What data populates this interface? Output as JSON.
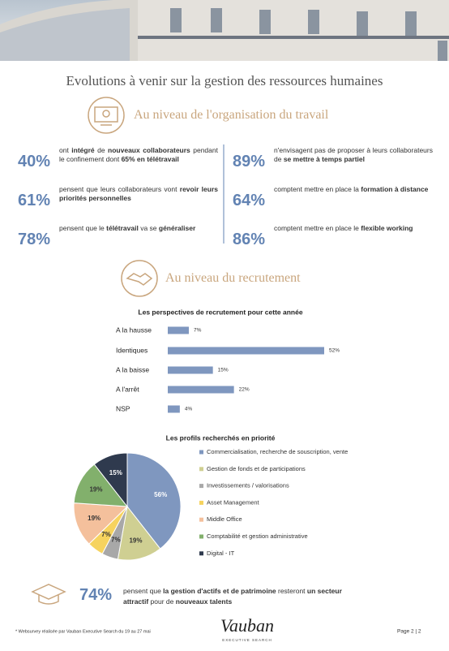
{
  "header": {
    "title": "Evolutions à venir sur la gestion des ressources humaines"
  },
  "section1": {
    "heading": "Au niveau de l'organisation du travail",
    "stats": [
      {
        "value": "40%",
        "text": [
          {
            "t": "ont "
          },
          {
            "t": "intégré",
            "b": true
          },
          {
            "t": " de "
          },
          {
            "t": "nouveaux collaborateurs",
            "b": true
          },
          {
            "t": " pendant le confinement dont "
          },
          {
            "t": "65% en télétravail",
            "b": true
          }
        ]
      },
      {
        "value": "61%",
        "text": [
          {
            "t": "pensent que leurs collaborateurs vont "
          },
          {
            "t": "revoir leurs priorités personnelles",
            "b": true
          }
        ]
      },
      {
        "value": "78%",
        "text": [
          {
            "t": "pensent que le "
          },
          {
            "t": "télétravail",
            "b": true
          },
          {
            "t": " va se "
          },
          {
            "t": "généraliser",
            "b": true
          }
        ]
      },
      {
        "value": "89%",
        "text": [
          {
            "t": "n'envisagent pas de proposer à leurs collaborateurs de "
          },
          {
            "t": "se mettre à temps partiel",
            "b": true
          }
        ]
      },
      {
        "value": "64%",
        "text": [
          {
            "t": "comptent mettre en place la "
          },
          {
            "t": "formation à distance",
            "b": true
          }
        ]
      },
      {
        "value": "86%",
        "text": [
          {
            "t": "comptent mettre en place le "
          },
          {
            "t": "flexible working",
            "b": true
          }
        ]
      }
    ]
  },
  "section2": {
    "heading": "Au niveau du recrutement"
  },
  "chart_data": [
    {
      "type": "bar",
      "orientation": "horizontal",
      "title": "Les perspectives de recrutement pour cette année",
      "categories": [
        "A la hausse",
        "Identiques",
        "A la baisse",
        "A l'arrêt",
        "NSP"
      ],
      "values": [
        7,
        52,
        15,
        22,
        4
      ],
      "value_labels": [
        "7%",
        "52%",
        "15%",
        "22%",
        "4%"
      ],
      "color": "#7f97bf"
    },
    {
      "type": "pie",
      "title": "Les profils recherchés en priorité",
      "categories": [
        "Commercialisation, recherche de souscription, vente",
        "Gestion de fonds et de participations",
        "Investissements / valorisations",
        "Asset Management",
        "Middle Office",
        "Comptabilité et gestion administrative",
        "Digital - IT"
      ],
      "values": [
        56,
        19,
        7,
        7,
        19,
        19,
        15
      ],
      "value_labels": [
        "56%",
        "19%",
        "7%",
        "7%",
        "19%",
        "19%",
        "15%"
      ],
      "colors": [
        "#7f97bf",
        "#cfcf92",
        "#a8a8a8",
        "#f6d35e",
        "#f4c09c",
        "#82b06c",
        "#2f3a4e"
      ]
    }
  ],
  "conclusion": {
    "value": "74%",
    "text": [
      {
        "t": "pensent que "
      },
      {
        "t": "la gestion d'actifs et de patrimoine",
        "b": true
      },
      {
        "t": " resteront "
      },
      {
        "t": "un secteur attractif",
        "b": true
      },
      {
        "t": " pour de "
      },
      {
        "t": "nouveaux talents",
        "b": true
      }
    ]
  },
  "footer": {
    "note": "* Websurvey réalisée par Vauban Executive Search du 19 au 27 mai",
    "logo": "Vauban",
    "logo_sub": "EXECUTIVE SEARCH",
    "page": "Page 2 | 2"
  }
}
